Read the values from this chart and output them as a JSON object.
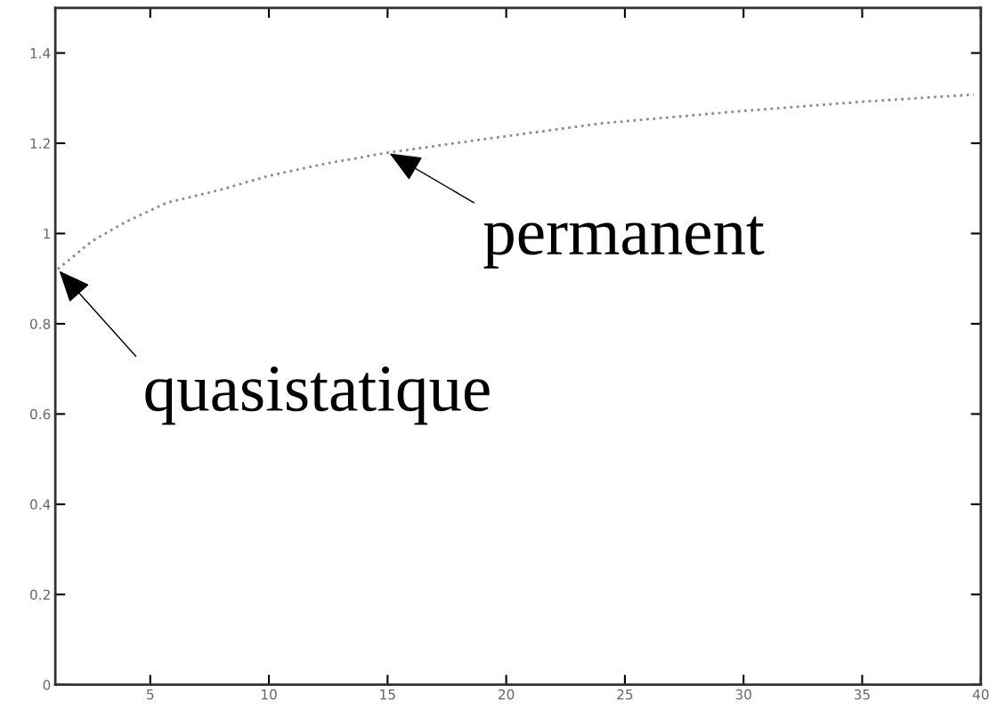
{
  "chart_data": {
    "type": "line",
    "x": [
      1.1,
      2.54,
      3.98,
      5.68,
      7.9,
      10,
      12.5,
      15,
      18.5,
      24,
      29.6,
      35,
      39.7
    ],
    "series": [
      {
        "color": "#8c8c8c",
        "values": [
          0.921,
          0.983,
          1.026,
          1.068,
          1.096,
          1.128,
          1.156,
          1.179,
          1.205,
          1.244,
          1.27,
          1.292,
          1.308
        ]
      }
    ],
    "xlim": [
      1,
      40
    ],
    "ylim": [
      0,
      1.5
    ],
    "xticks": [
      5,
      10,
      15,
      20,
      25,
      30,
      35,
      40
    ],
    "yticks": [
      0,
      0.2,
      0.4,
      0.6,
      0.8,
      1,
      1.2,
      1.4
    ],
    "line_style": "dotted",
    "marker": "none",
    "grid": false,
    "legend": false,
    "annotations": [
      {
        "text": "permanent",
        "x": 15,
        "y": 1.18
      },
      {
        "text": "quasistatique",
        "x": 1.1,
        "y": 0.921
      }
    ]
  }
}
